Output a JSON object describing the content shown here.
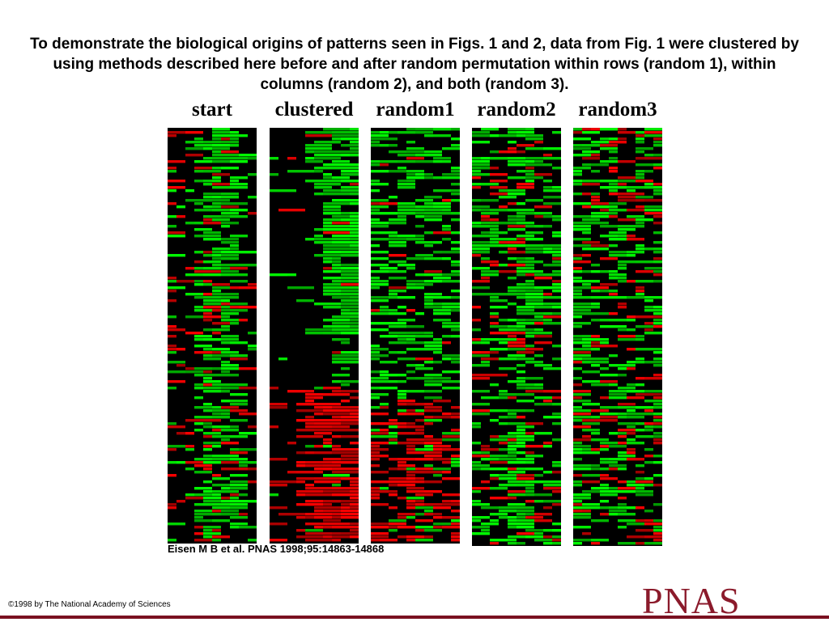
{
  "header": {
    "title": "To demonstrate the biological origins of patterns seen in Figs. 1 and 2, data from Fig. 1 were clustered by using methods described here before and after random permutation within rows (random 1), within columns (random 2), and both (random 3)."
  },
  "figure": {
    "panels": [
      "start",
      "clustered",
      "random1",
      "random2",
      "random3"
    ],
    "citation": "Eisen M B et al. PNAS 1998;95:14863-14868"
  },
  "footer": {
    "copyright": "©1998 by The National Academy of Sciences",
    "logo": "PNAS"
  }
}
